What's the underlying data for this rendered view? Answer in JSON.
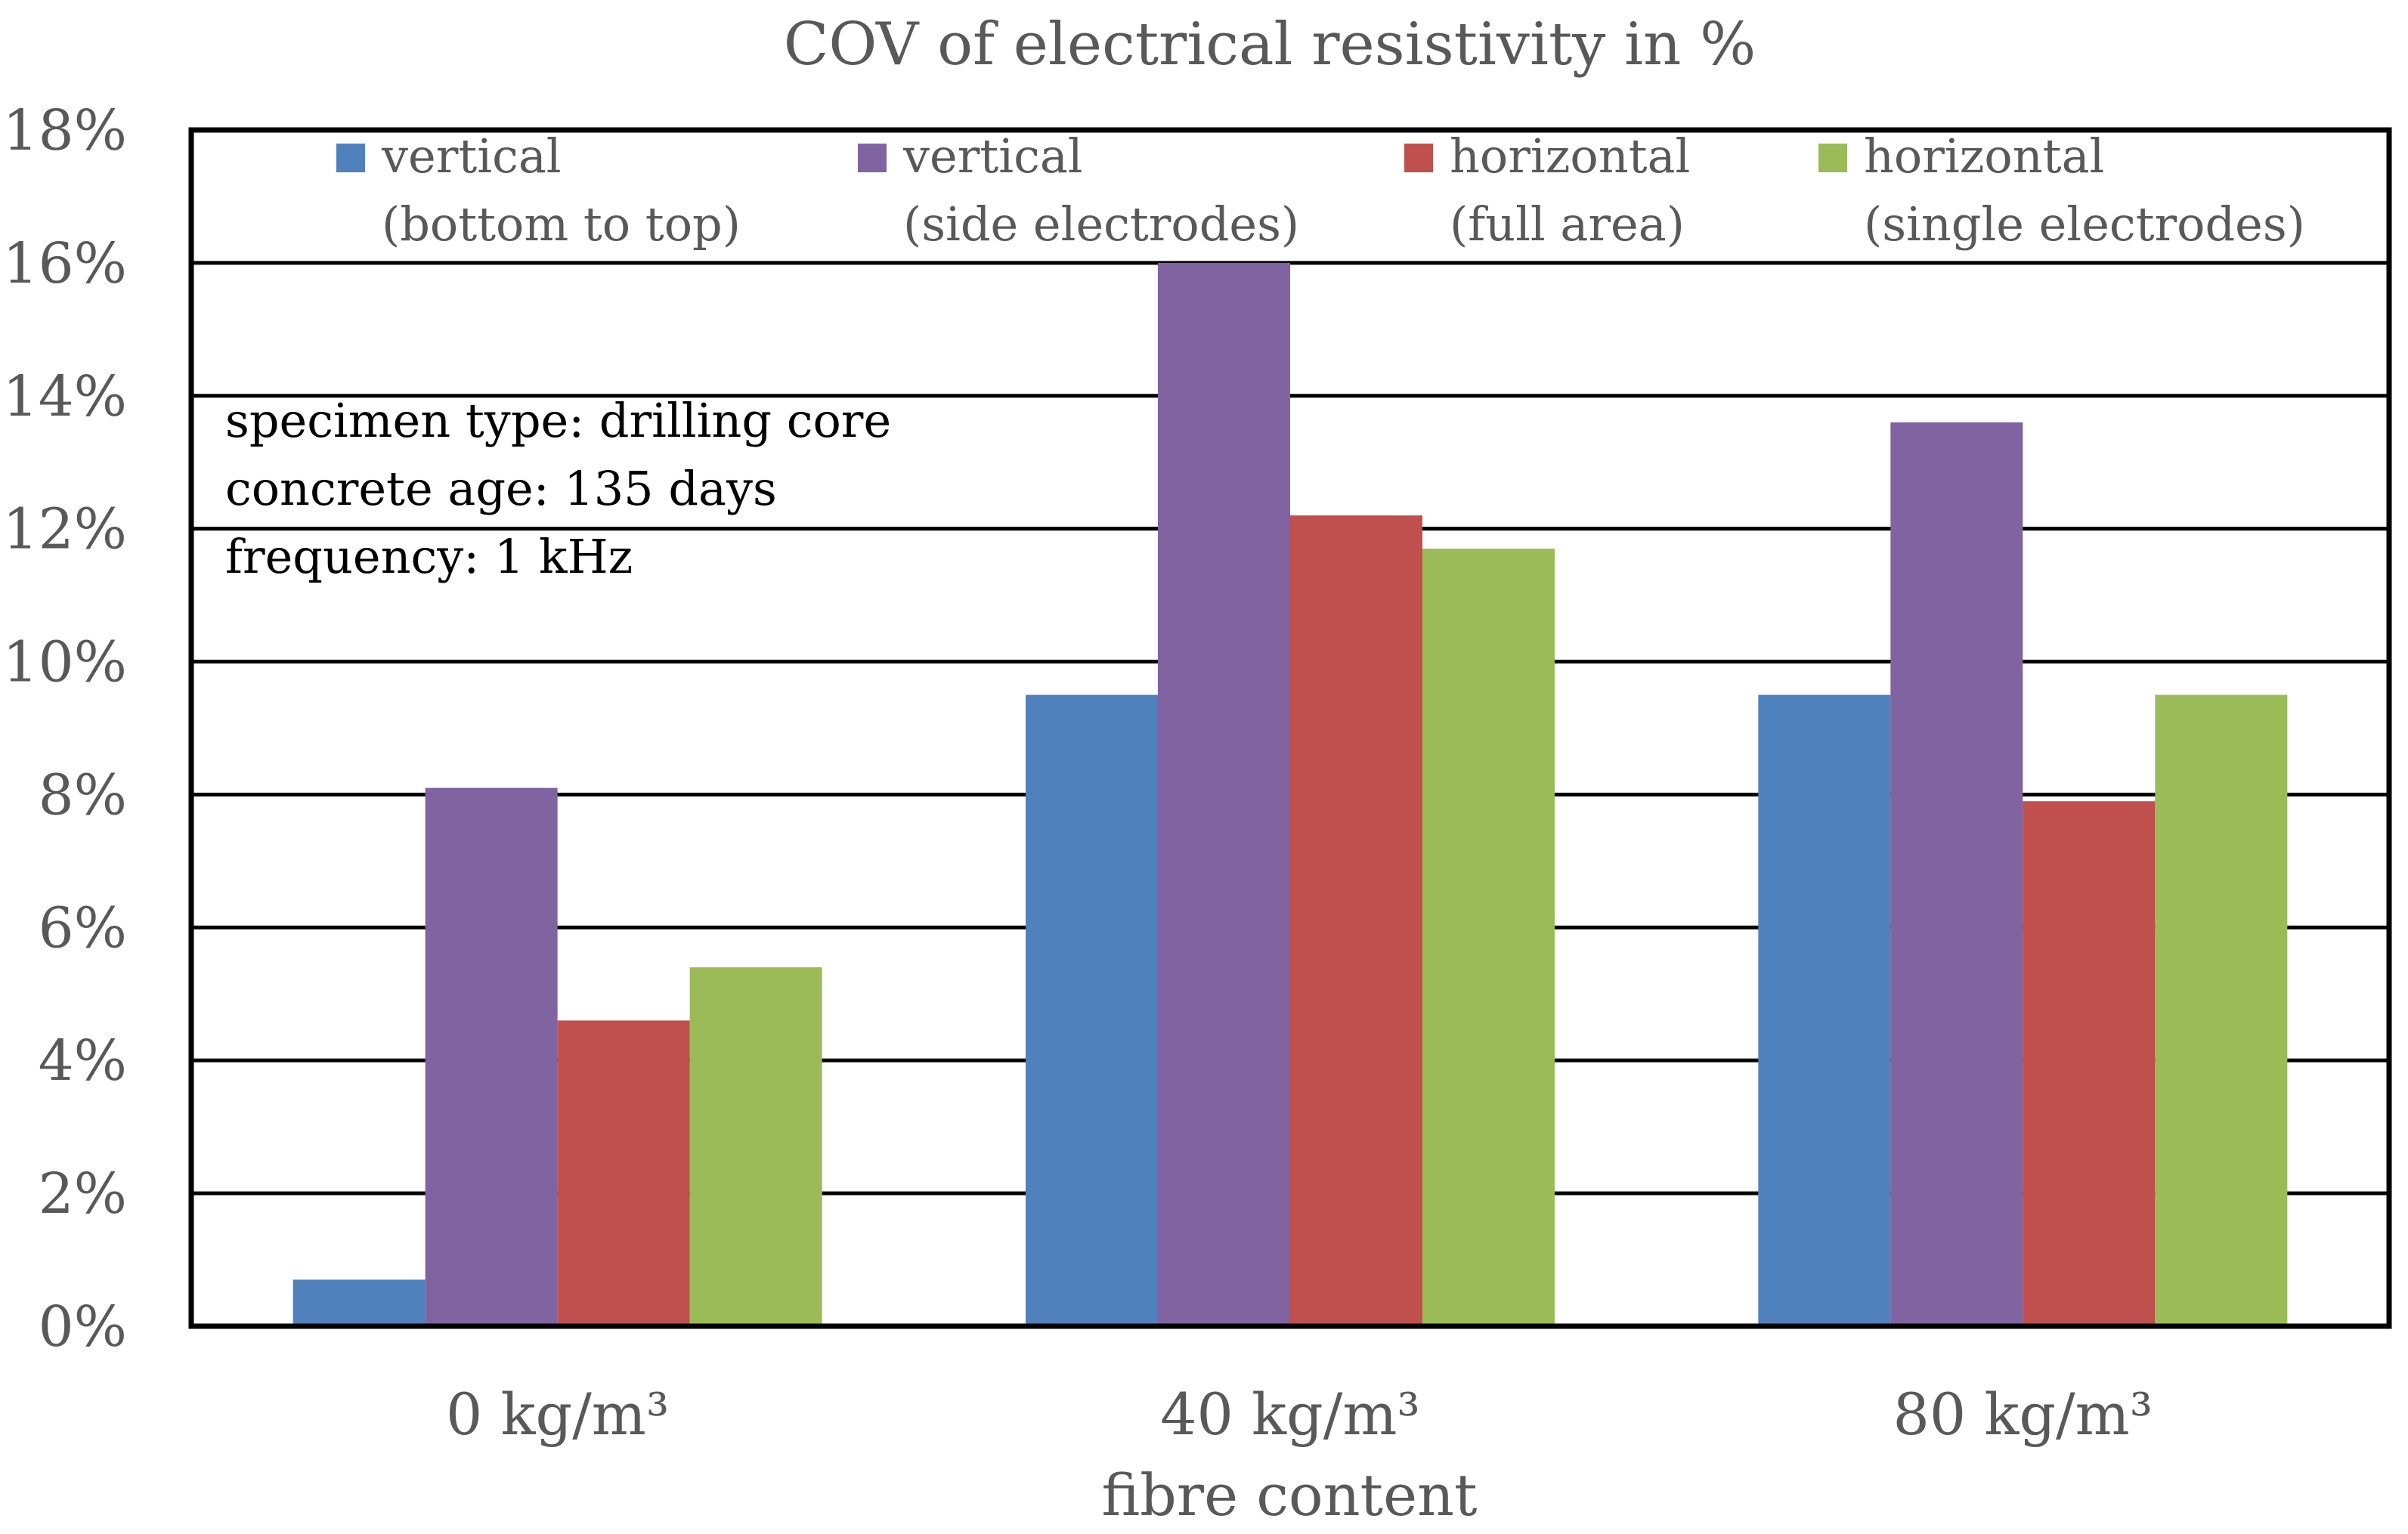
{
  "chart_data": {
    "type": "bar",
    "title": "COV of electrical resistivity in %",
    "xlabel": "fibre content",
    "ylabel": "",
    "categories": [
      "0 kg/m³",
      "40 kg/m³",
      "80 kg/m³"
    ],
    "ylim": [
      0,
      18
    ],
    "ytick_values": [
      0,
      2,
      4,
      6,
      8,
      10,
      12,
      14,
      16,
      18
    ],
    "ytick_labels": [
      "0%",
      "2%",
      "4%",
      "6%",
      "8%",
      "10%",
      "12%",
      "14%",
      "16%",
      "18%"
    ],
    "grid": true,
    "legend_position": "top",
    "series": [
      {
        "name": "vertical (bottom to top)",
        "legend_lines": [
          "vertical",
          "(bottom to top)"
        ],
        "color": "#4F81BD",
        "values": [
          0.7,
          9.5,
          9.5
        ]
      },
      {
        "name": "vertical (side electrodes)",
        "legend_lines": [
          "vertical",
          "(side electrodes)"
        ],
        "color": "#8064A2",
        "values": [
          8.1,
          16.0,
          13.6
        ]
      },
      {
        "name": "horizontal (full area)",
        "legend_lines": [
          "horizontal",
          "(full area)"
        ],
        "color": "#C0504D",
        "values": [
          4.6,
          12.2,
          7.9
        ]
      },
      {
        "name": "horizontal (single electrodes)",
        "legend_lines": [
          "horizontal",
          "(single electrodes)"
        ],
        "color": "#9BBB59",
        "values": [
          5.4,
          11.7,
          9.5
        ]
      }
    ],
    "annotations": [
      "specimen type: drilling core",
      "concrete age: 135 days",
      "frequency: 1 kHz"
    ]
  }
}
